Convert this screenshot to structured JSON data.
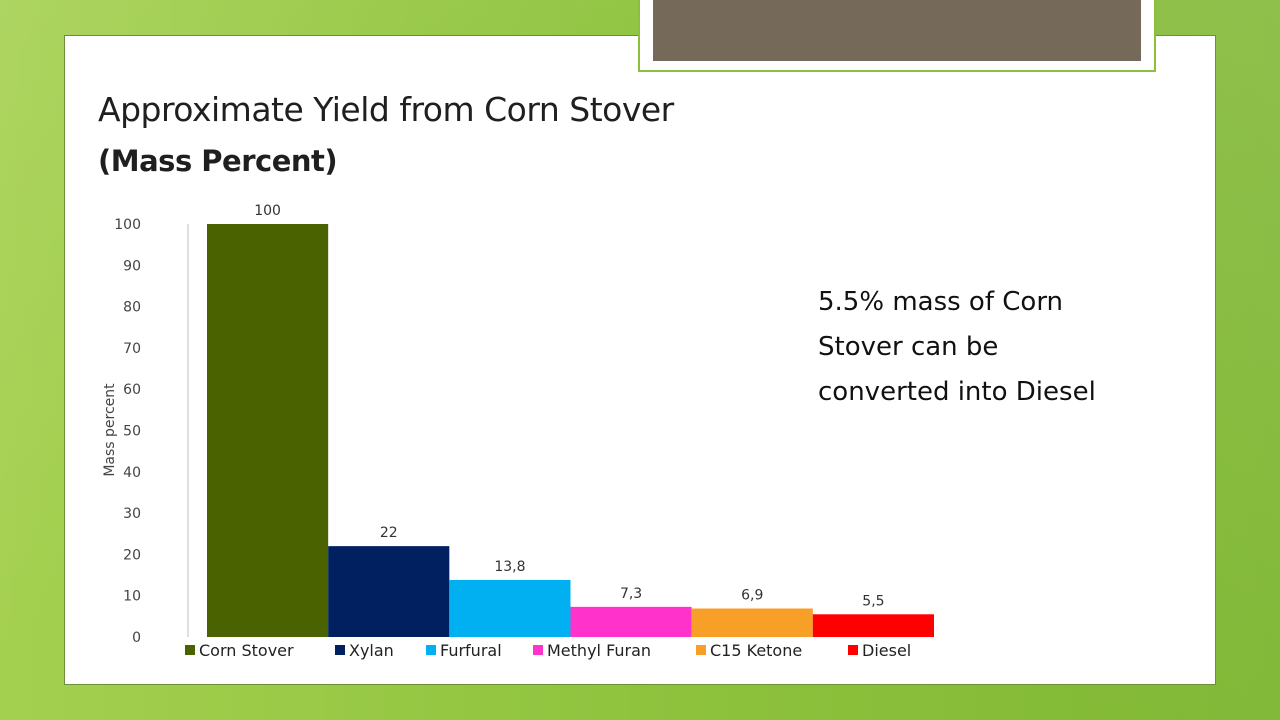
{
  "slide": {
    "title": "Approximate Yield from Corn Stover",
    "subtitle": "(Mass Percent)",
    "annotation_lines": [
      "5.5% mass of Corn",
      "Stover can be",
      "converted into Diesel"
    ]
  },
  "chart_data": {
    "type": "bar",
    "title": "",
    "xlabel": "",
    "ylabel": "Mass percent",
    "ylim": [
      0,
      100
    ],
    "yticks": [
      0,
      10,
      20,
      30,
      40,
      50,
      60,
      70,
      80,
      90,
      100
    ],
    "grid": false,
    "legend_position": "bottom",
    "categories": [
      "Corn Stover",
      "Xylan",
      "Furfural",
      "Methyl Furan",
      "C15 Ketone",
      "Diesel"
    ],
    "values": [
      100,
      22,
      13.8,
      7.3,
      6.9,
      5.5
    ],
    "data_labels": [
      "100",
      "22",
      "13,8",
      "7,3",
      "6,9",
      "5,5"
    ],
    "colors": [
      "#4a6200",
      "#002060",
      "#00b0f0",
      "#ff33cc",
      "#f79f26",
      "#ff0000"
    ]
  },
  "theme": {
    "background": "#8cbf3a",
    "top_box_fill": "#756959"
  }
}
